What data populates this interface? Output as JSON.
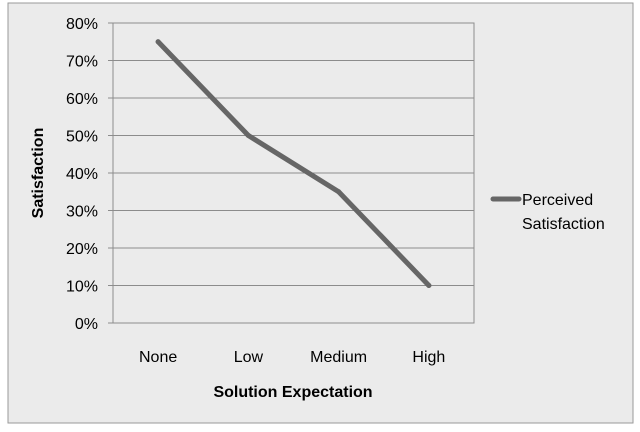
{
  "chart_data": {
    "type": "line",
    "title": "",
    "xlabel": "Solution Expectation",
    "ylabel": "Satisfaction",
    "categories": [
      "None",
      "Low",
      "Medium",
      "High"
    ],
    "series": [
      {
        "name": "Perceived Satisfaction",
        "values": [
          0.75,
          0.5,
          0.35,
          0.1
        ],
        "color": "#666666"
      }
    ],
    "ylim": [
      0,
      0.8
    ],
    "yticks": [
      {
        "value": 0.0,
        "label": "0%"
      },
      {
        "value": 0.1,
        "label": "10%"
      },
      {
        "value": 0.2,
        "label": "20%"
      },
      {
        "value": 0.3,
        "label": "30%"
      },
      {
        "value": 0.4,
        "label": "40%"
      },
      {
        "value": 0.5,
        "label": "50%"
      },
      {
        "value": 0.6,
        "label": "60%"
      },
      {
        "value": 0.7,
        "label": "70%"
      },
      {
        "value": 0.8,
        "label": "80%"
      }
    ],
    "grid": true,
    "legend": {
      "placement": "right",
      "lines": [
        "Perceived",
        "Satisfaction"
      ]
    },
    "colors": {
      "background": "#ebebeb",
      "plot_background": "#ffffff",
      "gridline": "#8c8c8c",
      "text": "#000000"
    }
  }
}
